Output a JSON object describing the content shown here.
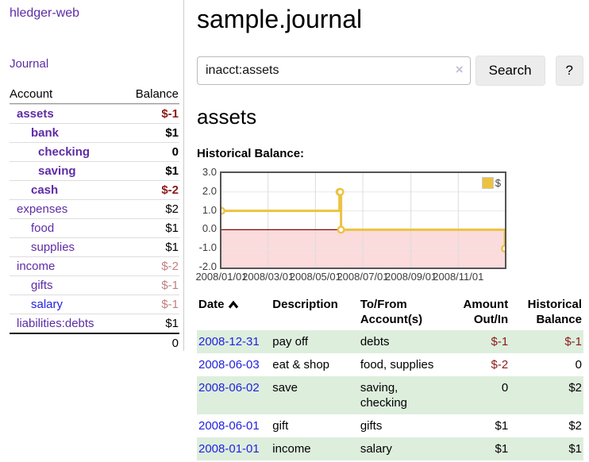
{
  "app": {
    "title": "hledger-web"
  },
  "palette": {
    "purple": "#5e2ca5",
    "link_blue": "#2222dd",
    "negative_dark_red": "#8b1a1a",
    "negative_rose": "#c1807f",
    "row_green": "#ddeedd",
    "series_gold": "#edc240",
    "chart_negative_fill": "#fbdbdb",
    "chart_zero_line": "#8b0000",
    "chart_grid": "#e8e8e8",
    "chart_border": "#545454"
  },
  "sidebar": {
    "nav_journal": "Journal",
    "accounts_table": {
      "headers": {
        "account": "Account",
        "balance": "Balance"
      },
      "rows": [
        {
          "name": "assets",
          "level": 0,
          "bold": true,
          "balance": "$-1",
          "neg_style": "dark"
        },
        {
          "name": "bank",
          "level": 1,
          "bold": true,
          "balance": "$1"
        },
        {
          "name": "checking",
          "level": 2,
          "bold": true,
          "balance": "0"
        },
        {
          "name": "saving",
          "level": 2,
          "bold": true,
          "balance": "$1"
        },
        {
          "name": "cash",
          "level": 1,
          "bold": true,
          "balance": "$-2",
          "neg_style": "dark"
        },
        {
          "name": "expenses",
          "level": 0,
          "bold": false,
          "balance": "$2"
        },
        {
          "name": "food",
          "level": 1,
          "bold": false,
          "balance": "$1"
        },
        {
          "name": "supplies",
          "level": 1,
          "bold": false,
          "balance": "$1"
        },
        {
          "name": "income",
          "level": 0,
          "bold": false,
          "balance": "$-2",
          "neg_style": "rose"
        },
        {
          "name": "gifts",
          "level": 1,
          "bold": false,
          "balance": "$-1",
          "neg_style": "rose"
        },
        {
          "name": "salary",
          "level": 1,
          "bold": false,
          "balance": "$-1",
          "neg_style": "rose",
          "link_style": "blue"
        },
        {
          "name": "liabilities:debts",
          "level": 0,
          "bold": false,
          "balance": "$1"
        }
      ],
      "total": "0"
    }
  },
  "main": {
    "title": "sample.journal",
    "search": {
      "value": "inacct:assets",
      "clear_icon": "×",
      "search_button": "Search",
      "help_button": "?"
    },
    "account_heading": "assets",
    "chart_heading": "Historical Balance:"
  },
  "chart_data": {
    "type": "line",
    "step": true,
    "title": "Historical Balance",
    "series": [
      {
        "name": "$",
        "color": "#edc240",
        "points": [
          [
            "2008-01-01",
            1
          ],
          [
            "2008-06-01",
            2
          ],
          [
            "2008-06-02",
            2
          ],
          [
            "2008-06-03",
            0
          ],
          [
            "2008-12-31",
            -1
          ]
        ]
      }
    ],
    "xlim": [
      "2008-01-01",
      "2008-12-31"
    ],
    "ylim": [
      -2,
      3
    ],
    "y_ticks": [
      "3.0",
      "2.0",
      "1.0",
      "0.0",
      "-1.0",
      "-2.0"
    ],
    "x_ticks": [
      {
        "date": "2008-01-01",
        "label": "2008/01/01"
      },
      {
        "date": "2008-03-01",
        "label": "2008/03/01"
      },
      {
        "date": "2008-05-01",
        "label": "2008/05/01"
      },
      {
        "date": "2008-07-01",
        "label": "2008/07/01"
      },
      {
        "date": "2008-09-01",
        "label": "2008/09/01"
      },
      {
        "date": "2008-11-01",
        "label": "2008/11/01"
      }
    ],
    "legend": {
      "label": "$",
      "position": "top-right"
    },
    "grid": true
  },
  "register_table": {
    "headers": [
      {
        "lines": [
          "Date"
        ],
        "sorted": "asc",
        "align": "left"
      },
      {
        "lines": [
          "Description"
        ],
        "align": "left"
      },
      {
        "lines": [
          "To/From",
          "Account(s)"
        ],
        "align": "left"
      },
      {
        "lines": [
          "Amount",
          "Out/In"
        ],
        "align": "right"
      },
      {
        "lines": [
          "Historical",
          "Balance"
        ],
        "align": "right"
      }
    ],
    "rows": [
      {
        "date": "2008-12-31",
        "description": "pay off",
        "accounts": "debts",
        "amount": "$-1",
        "balance": "$-1",
        "shaded": true
      },
      {
        "date": "2008-06-03",
        "description": "eat & shop",
        "accounts": "food, supplies",
        "amount": "$-2",
        "balance": "0",
        "shaded": false
      },
      {
        "date": "2008-06-02",
        "description": "save",
        "accounts": "saving, checking",
        "amount": "0",
        "balance": "$2",
        "shaded": true
      },
      {
        "date": "2008-06-01",
        "description": "gift",
        "accounts": "gifts",
        "amount": "$1",
        "balance": "$2",
        "shaded": false
      },
      {
        "date": "2008-01-01",
        "description": "income",
        "accounts": "salary",
        "amount": "$1",
        "balance": "$1",
        "shaded": true
      }
    ]
  }
}
